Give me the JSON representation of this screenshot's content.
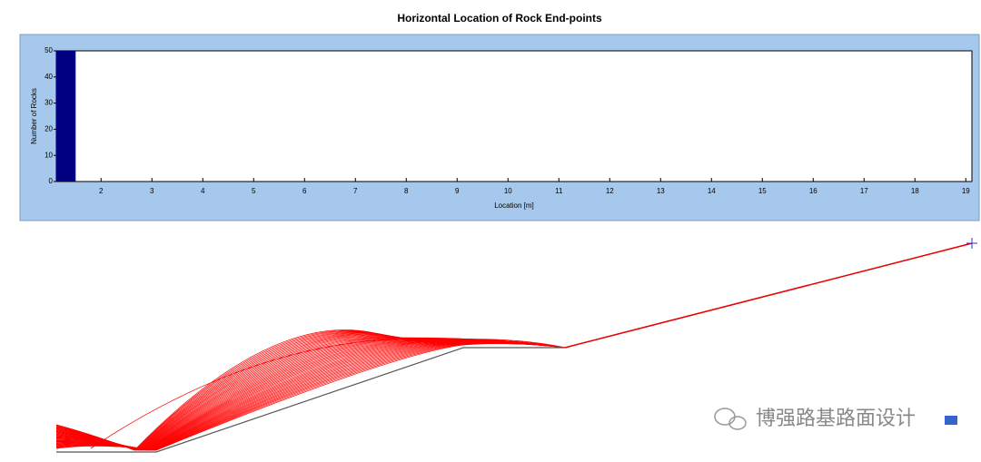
{
  "chart_data": {
    "type": "histogram",
    "title": "Horizontal Location of Rock End-points",
    "x_label": "Location [m]",
    "y_label": "Number of Rocks",
    "bins": [
      1.12,
      1.5
    ],
    "counts": [
      50
    ],
    "color": "#000080",
    "xlim": [
      1.12,
      19.12
    ],
    "xticks": [
      2,
      3,
      4,
      5,
      6,
      7,
      8,
      9,
      10,
      11,
      12,
      13,
      14,
      15,
      16,
      17,
      18,
      19
    ],
    "ylim": [
      0,
      50
    ],
    "yticks": [
      0,
      10,
      20,
      30,
      40,
      50
    ],
    "grid": false
  },
  "watermark": "博强路基路面设计"
}
